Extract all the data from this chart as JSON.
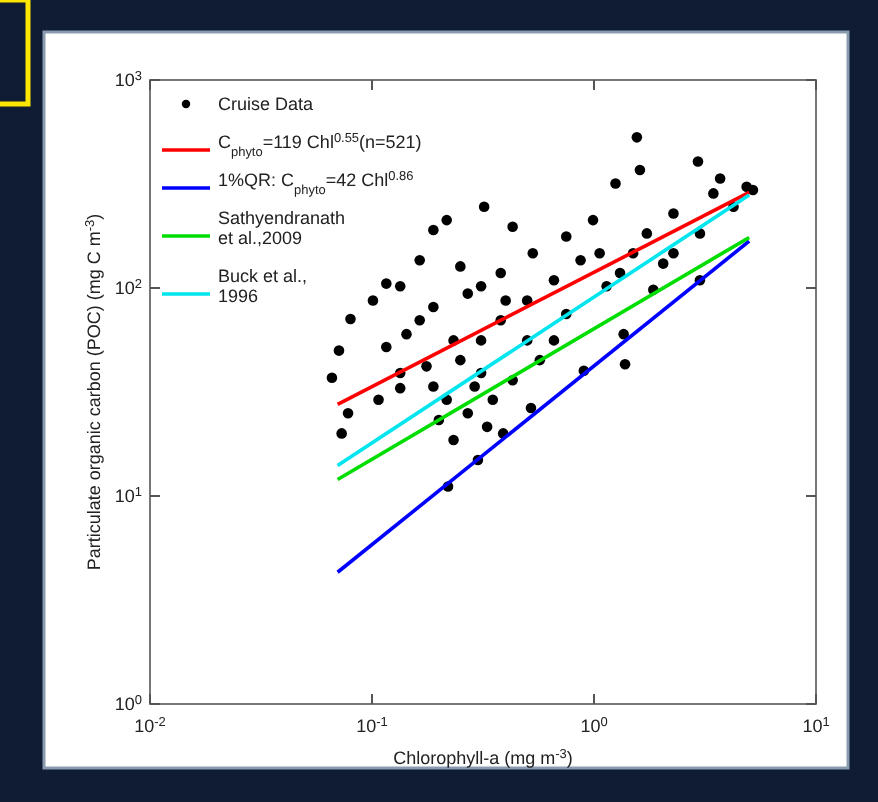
{
  "chart_data": {
    "type": "scatter",
    "xlabel": "Chlorophyll-a (mg m$^{-3}$)",
    "ylabel": "Particulate organic carbon (POC) (mg C m$^{-3}$)",
    "log": "xy",
    "xlim": [
      0.01,
      10
    ],
    "ylim": [
      1,
      1000
    ],
    "xticks": [
      {
        "value": 0.01,
        "label": "10$^{-2}$"
      },
      {
        "value": 0.1,
        "label": "10$^{-1}$"
      },
      {
        "value": 1,
        "label": "10$^{0}$"
      },
      {
        "value": 10,
        "label": "10$^{1}$"
      }
    ],
    "yticks": [
      {
        "value": 1,
        "label": "10$^{0}$"
      },
      {
        "value": 10,
        "label": "10$^{1}$"
      },
      {
        "value": 100,
        "label": "10$^{2}$"
      },
      {
        "value": 1000,
        "label": "10$^{3}$"
      }
    ],
    "grid": false,
    "legend": "top left",
    "series": [
      {
        "name": "Cruise Data",
        "color": "#000000",
        "marker": "circle",
        "x": [
          1.56,
          2.94,
          1.61,
          1.25,
          0.32,
          3.7,
          4.87,
          0.08,
          0.071,
          0.066,
          0.073,
          0.078,
          0.107,
          0.134,
          0.22,
          0.3,
          0.116,
          0.189,
          0.217,
          0.43,
          1.36,
          1.38,
          0.9,
          0.52,
          0.39,
          1.85,
          2.05,
          3.0,
          4.25,
          0.99,
          0.75,
          0.53,
          0.38,
          0.27,
          0.189,
          0.143,
          0.233,
          0.31,
          0.217,
          0.27,
          0.233,
          0.35,
          0.43,
          0.57,
          0.66,
          0.75,
          1.14,
          1.5,
          2.28,
          3.45,
          5.2,
          0.31,
          0.25,
          0.164,
          0.134,
          0.164,
          0.38,
          0.5,
          0.66,
          0.87,
          0.29,
          0.25,
          0.189,
          0.2,
          0.33,
          0.5,
          0.116,
          0.101,
          2.28,
          1.73,
          1.06,
          3.0,
          1.31,
          0.176,
          0.134,
          0.31,
          0.4
        ],
        "values": [
          530,
          406,
          369,
          318,
          246,
          336,
          307,
          71,
          50,
          37,
          20,
          25,
          29,
          33,
          11.1,
          14.9,
          105,
          190,
          212,
          197,
          60,
          43,
          40,
          26.5,
          20,
          98,
          131,
          183,
          246,
          212,
          177,
          147,
          118,
          94,
          81,
          60,
          56,
          39,
          29,
          25,
          18.6,
          29,
          36,
          45,
          56,
          75,
          102,
          147,
          228,
          285,
          296,
          102,
          127,
          136,
          102,
          70,
          70,
          87,
          109,
          136,
          33.6,
          45,
          33.6,
          23.2,
          21.5,
          56,
          52,
          87,
          147,
          183,
          147,
          109,
          118,
          42,
          39,
          56,
          87
        ]
      },
      {
        "name": "C$_{phyto}$=119 Chl$^{0.55}$(n=521)",
        "type": "line",
        "color": "#ff0000",
        "marker": "none",
        "x": [
          0.07,
          5
        ],
        "values": [
          27.6,
          288
        ]
      },
      {
        "name": "1%QR: C$_{phyto}$=42 Chl$^{0.86}$",
        "type": "line",
        "color": "#0000ff",
        "marker": "none",
        "x": [
          0.07,
          5
        ],
        "values": [
          4.3,
          168
        ]
      },
      {
        "name": "Sathyendranath et al.,2009",
        "type": "line",
        "color": "#00dd00",
        "marker": "none",
        "x": [
          0.07,
          5
        ],
        "values": [
          12,
          175
        ]
      },
      {
        "name": "Buck et al., 1996",
        "type": "line",
        "color": "#00e5ee",
        "marker": "none",
        "x": [
          0.07,
          5
        ],
        "values": [
          14,
          280
        ]
      }
    ]
  }
}
